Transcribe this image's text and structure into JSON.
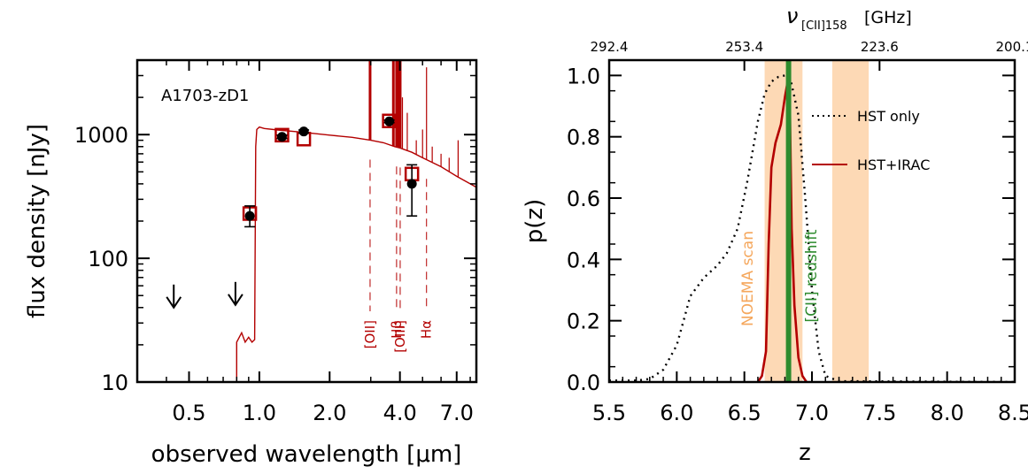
{
  "chart_data": [
    {
      "type": "line",
      "panel": "left",
      "object_label": "A1703-zD1",
      "xlabel": "observed wavelength [μm]",
      "ylabel": "flux density [nJy]",
      "xscale": "log",
      "yscale": "log",
      "xlim": [
        0.3,
        8.5
      ],
      "ylim": [
        10,
        4000
      ],
      "xticks": [
        {
          "value": 0.5,
          "label": "0.5"
        },
        {
          "value": 1.0,
          "label": "1.0"
        },
        {
          "value": 2.0,
          "label": "2.0"
        },
        {
          "value": 4.0,
          "label": "4.0"
        },
        {
          "value": 7.0,
          "label": "7.0"
        }
      ],
      "yticks": [
        {
          "value": 10,
          "label": "10"
        },
        {
          "value": 100,
          "label": "100"
        },
        {
          "value": 1000,
          "label": "1000"
        }
      ],
      "model_spectrum": {
        "name": "best-fit SED",
        "color": "#b30000",
        "points": [
          [
            0.8,
            10
          ],
          [
            0.8,
            21
          ],
          [
            0.84,
            25
          ],
          [
            0.87,
            21
          ],
          [
            0.9,
            23
          ],
          [
            0.93,
            21
          ],
          [
            0.955,
            22
          ],
          [
            0.965,
            800
          ],
          [
            0.975,
            1100
          ],
          [
            1.0,
            1150
          ],
          [
            1.05,
            1120
          ],
          [
            1.2,
            1090
          ],
          [
            1.5,
            1050
          ],
          [
            2.0,
            990
          ],
          [
            2.5,
            950
          ],
          [
            3.0,
            900
          ],
          [
            3.4,
            860
          ],
          [
            3.8,
            800
          ],
          [
            4.0,
            780
          ],
          [
            4.5,
            720
          ],
          [
            5.0,
            650
          ],
          [
            6.0,
            550
          ],
          [
            7.0,
            460
          ],
          [
            8.0,
            400
          ],
          [
            8.5,
            375
          ]
        ]
      },
      "emission_lines": [
        {
          "label": "[OII]",
          "wavelength": 2.98
        },
        {
          "label": "Hβ",
          "wavelength": 3.87
        },
        {
          "label": "[OIII]",
          "wavelength": 4.01
        },
        {
          "label": "Hα",
          "wavelength": 5.2
        }
      ],
      "model_photometry": {
        "name": "model fluxes",
        "color": "#b30000",
        "points": [
          {
            "wavelength": 0.91,
            "flux": 230
          },
          {
            "wavelength": 1.25,
            "flux": 990
          },
          {
            "wavelength": 1.55,
            "flux": 920
          },
          {
            "wavelength": 3.6,
            "flux": 1290
          },
          {
            "wavelength": 4.5,
            "flux": 480
          }
        ]
      },
      "observed_photometry": {
        "name": "measured fluxes",
        "color": "#000000",
        "points": [
          {
            "wavelength": 0.91,
            "flux": 220,
            "err_low": 180,
            "err_high": 265
          },
          {
            "wavelength": 1.25,
            "flux": 960,
            "err_low": 930,
            "err_high": 990
          },
          {
            "wavelength": 1.55,
            "flux": 1060,
            "err_low": 1030,
            "err_high": 1090
          },
          {
            "wavelength": 3.6,
            "flux": 1280,
            "err_low": 1250,
            "err_high": 1310
          },
          {
            "wavelength": 4.5,
            "flux": 400,
            "err_low": 220,
            "err_high": 570
          }
        ]
      },
      "upper_limits": [
        {
          "wavelength": 0.43,
          "flux": 40
        },
        {
          "wavelength": 0.79,
          "flux": 42
        }
      ]
    },
    {
      "type": "line",
      "panel": "right",
      "xlabel": "z",
      "ylabel": "p(z)",
      "top_axis_label": "ν[CII]158 [GHz]",
      "top_axis_sub": "[CII]158",
      "top_axis_unit": "[GHz]",
      "xlim": [
        5.5,
        8.5
      ],
      "ylim": [
        0.0,
        1.05
      ],
      "xticks": [
        {
          "value": 5.5,
          "label": "5.5"
        },
        {
          "value": 6.0,
          "label": "6.0"
        },
        {
          "value": 6.5,
          "label": "6.5"
        },
        {
          "value": 7.0,
          "label": "7.0"
        },
        {
          "value": 7.5,
          "label": "7.5"
        },
        {
          "value": 8.0,
          "label": "8.0"
        },
        {
          "value": 8.5,
          "label": "8.5"
        }
      ],
      "yticks": [
        {
          "value": 0.0,
          "label": "0.0"
        },
        {
          "value": 0.2,
          "label": "0.2"
        },
        {
          "value": 0.4,
          "label": "0.4"
        },
        {
          "value": 0.6,
          "label": "0.6"
        },
        {
          "value": 0.8,
          "label": "0.8"
        },
        {
          "value": 1.0,
          "label": "1.0"
        }
      ],
      "top_ticks": [
        {
          "z": 5.5,
          "label": "292.4"
        },
        {
          "z": 6.5,
          "label": "253.4"
        },
        {
          "z": 7.5,
          "label": "223.6"
        },
        {
          "z": 8.5,
          "label": "200.1"
        }
      ],
      "shaded_bands": [
        {
          "z_min": 6.65,
          "z_max": 6.93,
          "color": "#fdd9b5"
        },
        {
          "z_min": 7.15,
          "z_max": 7.42,
          "color": "#fdd9b5"
        }
      ],
      "band_label": {
        "text": "NOEMA scan",
        "color": "#f5a75c"
      },
      "cii_redshift": {
        "z": 6.827,
        "text": "[CII] redshift",
        "color": "#2e8b2e"
      },
      "series": [
        {
          "name": "HST only",
          "style": "dotted",
          "color": "#000000",
          "points": [
            [
              5.5,
              0.005
            ],
            [
              5.7,
              0.005
            ],
            [
              5.8,
              0.01
            ],
            [
              5.9,
              0.04
            ],
            [
              6.0,
              0.12
            ],
            [
              6.05,
              0.2
            ],
            [
              6.1,
              0.28
            ],
            [
              6.2,
              0.34
            ],
            [
              6.3,
              0.38
            ],
            [
              6.37,
              0.42
            ],
            [
              6.45,
              0.5
            ],
            [
              6.52,
              0.65
            ],
            [
              6.6,
              0.85
            ],
            [
              6.65,
              0.94
            ],
            [
              6.7,
              0.98
            ],
            [
              6.75,
              0.995
            ],
            [
              6.8,
              1.0
            ],
            [
              6.84,
              0.99
            ],
            [
              6.9,
              0.87
            ],
            [
              6.95,
              0.6
            ],
            [
              7.0,
              0.3
            ],
            [
              7.05,
              0.1
            ],
            [
              7.1,
              0.02
            ],
            [
              7.2,
              0.003
            ],
            [
              8.5,
              0.0
            ]
          ]
        },
        {
          "name": "HST+IRAC",
          "style": "solid",
          "color": "#b30000",
          "points": [
            [
              6.6,
              0.0
            ],
            [
              6.63,
              0.02
            ],
            [
              6.66,
              0.1
            ],
            [
              6.68,
              0.45
            ],
            [
              6.7,
              0.7
            ],
            [
              6.73,
              0.78
            ],
            [
              6.77,
              0.84
            ],
            [
              6.8,
              0.93
            ],
            [
              6.82,
              0.98
            ],
            [
              6.835,
              0.95
            ],
            [
              6.85,
              0.5
            ],
            [
              6.87,
              0.25
            ],
            [
              6.9,
              0.08
            ],
            [
              6.93,
              0.02
            ],
            [
              6.96,
              0.0
            ]
          ]
        }
      ]
    }
  ]
}
